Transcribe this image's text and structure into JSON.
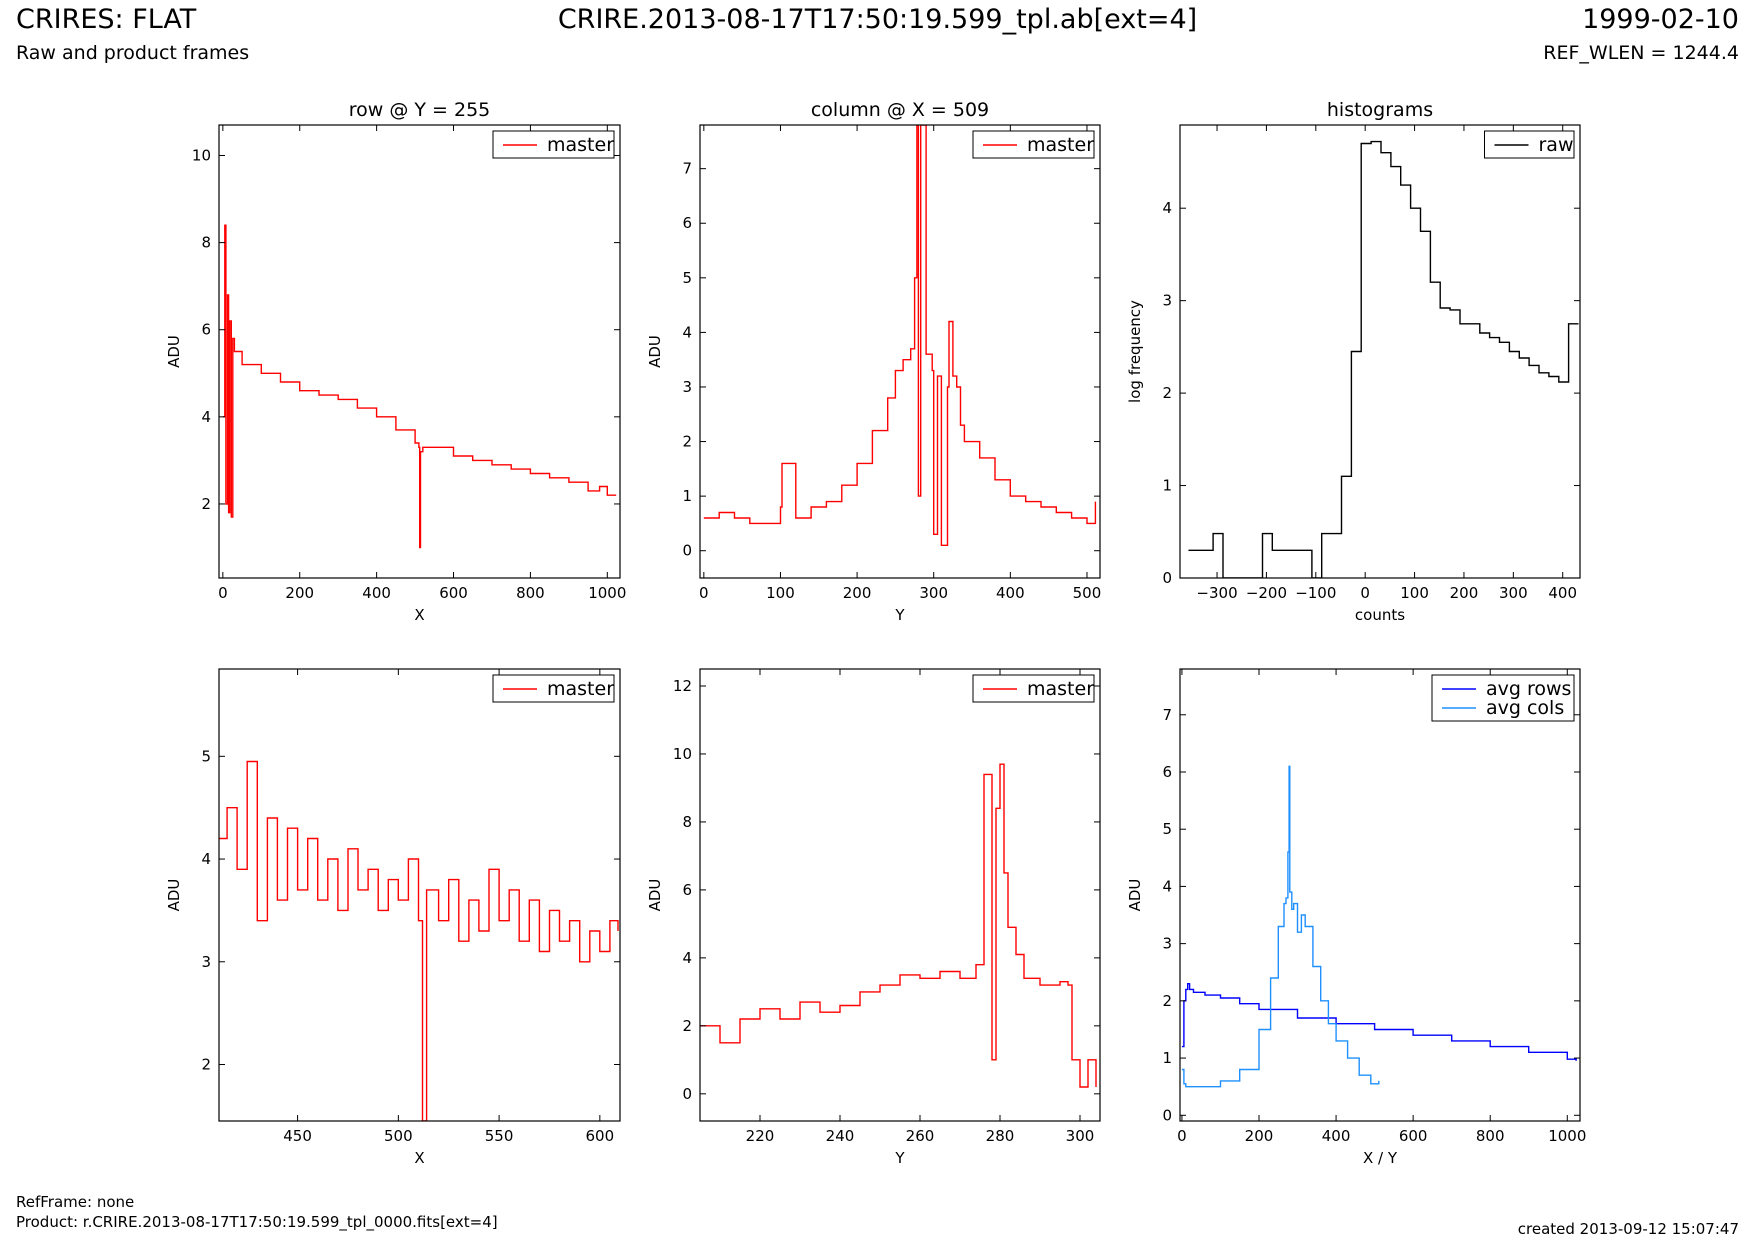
{
  "header": {
    "title": "CRIRES: FLAT",
    "subtitle": "Raw and product frames",
    "file": "CRIRE.2013-08-17T17:50:19.599_tpl.ab[ext=4]",
    "date": "1999-02-10",
    "ref_wlen": "REF_WLEN = 1244.4"
  },
  "footer": {
    "refframe": "RefFrame: none",
    "product": "Product: r.CRIRE.2013-08-17T17:50:19.599_tpl_0000.fits[ext=4]",
    "created": "created 2013-09-12 15:07:47"
  },
  "colors": {
    "master": "#ff0000",
    "raw": "#000000",
    "avg_rows": "#0000ff",
    "avg_cols": "#1e90ff"
  },
  "chart_data": [
    {
      "id": "row",
      "type": "line",
      "title": "row @ Y = 255",
      "xlabel": "X",
      "ylabel": "ADU",
      "xlim": [
        -10,
        1033
      ],
      "ylim": [
        0.3,
        10.7
      ],
      "xticks": [
        0,
        200,
        400,
        600,
        800,
        1000
      ],
      "yticks": [
        2,
        4,
        6,
        8,
        10
      ],
      "legend": "top-right",
      "series": [
        {
          "name": "master",
          "color": "#ff0000",
          "x": [
            0,
            5,
            8,
            12,
            15,
            18,
            22,
            26,
            30,
            50,
            100,
            150,
            200,
            250,
            300,
            350,
            400,
            450,
            500,
            510,
            512,
            514,
            520,
            550,
            600,
            650,
            700,
            750,
            800,
            850,
            900,
            950,
            980,
            1000,
            1023
          ],
          "y": [
            4.0,
            8.4,
            2.0,
            6.8,
            1.8,
            6.2,
            1.7,
            5.8,
            5.5,
            5.2,
            5.0,
            4.8,
            4.6,
            4.5,
            4.4,
            4.2,
            4.0,
            3.7,
            3.4,
            3.3,
            1.0,
            3.2,
            3.3,
            3.3,
            3.1,
            3.0,
            2.9,
            2.8,
            2.7,
            2.6,
            2.5,
            2.3,
            2.4,
            2.2,
            2.2
          ]
        }
      ]
    },
    {
      "id": "column",
      "type": "line",
      "title": "column @ X = 509",
      "xlabel": "Y",
      "ylabel": "ADU",
      "xlim": [
        -5,
        517
      ],
      "ylim": [
        -0.5,
        7.8
      ],
      "xticks": [
        0,
        100,
        200,
        300,
        400,
        500
      ],
      "yticks": [
        0,
        1,
        2,
        3,
        4,
        5,
        6,
        7
      ],
      "legend": "top-right",
      "series": [
        {
          "name": "master",
          "color": "#ff0000",
          "x": [
            0,
            20,
            40,
            60,
            80,
            100,
            102,
            120,
            140,
            160,
            180,
            200,
            220,
            240,
            250,
            260,
            270,
            275,
            278,
            280,
            283,
            290,
            298,
            300,
            305,
            310,
            318,
            320,
            325,
            330,
            335,
            340,
            360,
            380,
            400,
            420,
            440,
            460,
            480,
            500,
            511
          ],
          "y": [
            0.6,
            0.7,
            0.6,
            0.5,
            0.5,
            0.8,
            1.6,
            0.6,
            0.8,
            0.9,
            1.2,
            1.6,
            2.2,
            2.8,
            3.3,
            3.5,
            3.7,
            5.0,
            7.8,
            1.0,
            7.8,
            3.6,
            3.3,
            0.3,
            3.2,
            0.1,
            3.0,
            4.2,
            3.2,
            3.0,
            2.3,
            2.0,
            1.7,
            1.3,
            1.0,
            0.9,
            0.8,
            0.7,
            0.6,
            0.5,
            0.9
          ]
        }
      ]
    },
    {
      "id": "hist",
      "type": "line",
      "title": "histograms",
      "xlabel": "counts",
      "ylabel": "log frequency",
      "xlim": [
        -375,
        435
      ],
      "ylim": [
        0,
        4.9
      ],
      "xticks": [
        -300,
        -200,
        -100,
        0,
        100,
        200,
        300,
        400
      ],
      "yticks": [
        0,
        1,
        2,
        3,
        4
      ],
      "legend": "top-right",
      "series": [
        {
          "name": "raw",
          "color": "#000000",
          "x": [
            -358,
            -330,
            -308,
            -288,
            -268,
            -248,
            -228,
            -208,
            -188,
            -168,
            -148,
            -128,
            -108,
            -88,
            -68,
            -48,
            -28,
            -8,
            12,
            32,
            52,
            72,
            92,
            112,
            132,
            152,
            172,
            192,
            212,
            232,
            252,
            272,
            292,
            312,
            332,
            352,
            372,
            392,
            412,
            432
          ],
          "y": [
            0.3,
            0.3,
            0.48,
            0.0,
            0.0,
            0.0,
            0.0,
            0.48,
            0.3,
            0.3,
            0.3,
            0.3,
            0.0,
            0.48,
            0.48,
            1.1,
            2.45,
            4.7,
            4.72,
            4.6,
            4.45,
            4.25,
            4.0,
            3.75,
            3.2,
            2.92,
            2.9,
            2.75,
            2.75,
            2.65,
            2.6,
            2.55,
            2.45,
            2.38,
            2.3,
            2.22,
            2.18,
            2.12,
            2.75,
            2.75
          ]
        }
      ]
    },
    {
      "id": "row_zoom",
      "type": "line",
      "title": "",
      "xlabel": "X",
      "ylabel": "ADU",
      "xlim": [
        411,
        610
      ],
      "ylim": [
        1.45,
        5.85
      ],
      "xticks": [
        450,
        500,
        550,
        600
      ],
      "yticks": [
        2,
        3,
        4,
        5
      ],
      "legend": "top-right",
      "series": [
        {
          "name": "master",
          "color": "#ff0000",
          "x": [
            411,
            415,
            420,
            425,
            430,
            435,
            440,
            445,
            450,
            455,
            460,
            465,
            470,
            475,
            480,
            485,
            490,
            495,
            500,
            505,
            510,
            512,
            514,
            520,
            525,
            530,
            535,
            540,
            545,
            550,
            555,
            560,
            565,
            570,
            575,
            580,
            585,
            590,
            595,
            600,
            605,
            609
          ],
          "y": [
            4.2,
            4.5,
            3.9,
            4.95,
            3.4,
            4.4,
            3.6,
            4.3,
            3.7,
            4.2,
            3.6,
            4.0,
            3.5,
            4.1,
            3.7,
            3.9,
            3.5,
            3.8,
            3.6,
            4.0,
            3.4,
            1.45,
            3.7,
            3.4,
            3.8,
            3.2,
            3.6,
            3.3,
            3.9,
            3.4,
            3.7,
            3.2,
            3.6,
            3.1,
            3.5,
            3.2,
            3.4,
            3.0,
            3.3,
            3.1,
            3.4,
            3.3
          ]
        }
      ]
    },
    {
      "id": "col_zoom",
      "type": "line",
      "title": "",
      "xlabel": "Y",
      "ylabel": "ADU",
      "xlim": [
        205,
        305
      ],
      "ylim": [
        -0.8,
        12.5
      ],
      "xticks": [
        220,
        240,
        260,
        280,
        300
      ],
      "yticks": [
        0,
        2,
        4,
        6,
        8,
        10,
        12
      ],
      "legend": "top-right",
      "series": [
        {
          "name": "master",
          "color": "#ff0000",
          "x": [
            205,
            210,
            215,
            220,
            225,
            230,
            235,
            240,
            245,
            250,
            255,
            260,
            265,
            270,
            274,
            276,
            278,
            279,
            280,
            281,
            282,
            284,
            286,
            290,
            295,
            297,
            298,
            300,
            302,
            304
          ],
          "y": [
            2.0,
            1.5,
            2.2,
            2.5,
            2.2,
            2.7,
            2.4,
            2.6,
            3.0,
            3.2,
            3.5,
            3.4,
            3.6,
            3.4,
            3.8,
            9.4,
            1.0,
            8.4,
            9.7,
            6.5,
            4.9,
            4.1,
            3.4,
            3.2,
            3.3,
            3.2,
            1.0,
            0.2,
            1.0,
            0.2
          ]
        }
      ]
    },
    {
      "id": "avg",
      "type": "line",
      "title": "",
      "xlabel": "X / Y",
      "ylabel": "ADU",
      "xlim": [
        -5,
        1033
      ],
      "ylim": [
        -0.1,
        7.8
      ],
      "xticks": [
        0,
        200,
        400,
        600,
        800,
        1000
      ],
      "yticks": [
        0,
        1,
        2,
        3,
        4,
        5,
        6,
        7
      ],
      "legend": "top-right",
      "series": [
        {
          "name": "avg rows",
          "color": "#0000ff",
          "x": [
            0,
            5,
            10,
            15,
            20,
            25,
            30,
            60,
            100,
            150,
            200,
            300,
            400,
            500,
            600,
            700,
            800,
            900,
            1000,
            1023
          ],
          "y": [
            1.2,
            2.0,
            2.2,
            2.3,
            2.2,
            2.2,
            2.15,
            2.1,
            2.05,
            1.95,
            1.85,
            1.7,
            1.6,
            1.5,
            1.4,
            1.3,
            1.2,
            1.1,
            0.98,
            0.95
          ]
        },
        {
          "name": "avg cols",
          "color": "#1e90ff",
          "x": [
            0,
            5,
            10,
            50,
            100,
            150,
            200,
            230,
            250,
            265,
            270,
            275,
            278,
            280,
            285,
            290,
            300,
            310,
            320,
            340,
            360,
            380,
            400,
            430,
            460,
            490,
            511
          ],
          "y": [
            0.8,
            0.55,
            0.5,
            0.5,
            0.6,
            0.8,
            1.5,
            2.4,
            3.3,
            3.7,
            3.8,
            4.6,
            6.1,
            3.9,
            3.6,
            3.7,
            3.2,
            3.5,
            3.3,
            2.6,
            2.0,
            1.6,
            1.3,
            1.0,
            0.7,
            0.55,
            0.6
          ]
        }
      ]
    }
  ]
}
